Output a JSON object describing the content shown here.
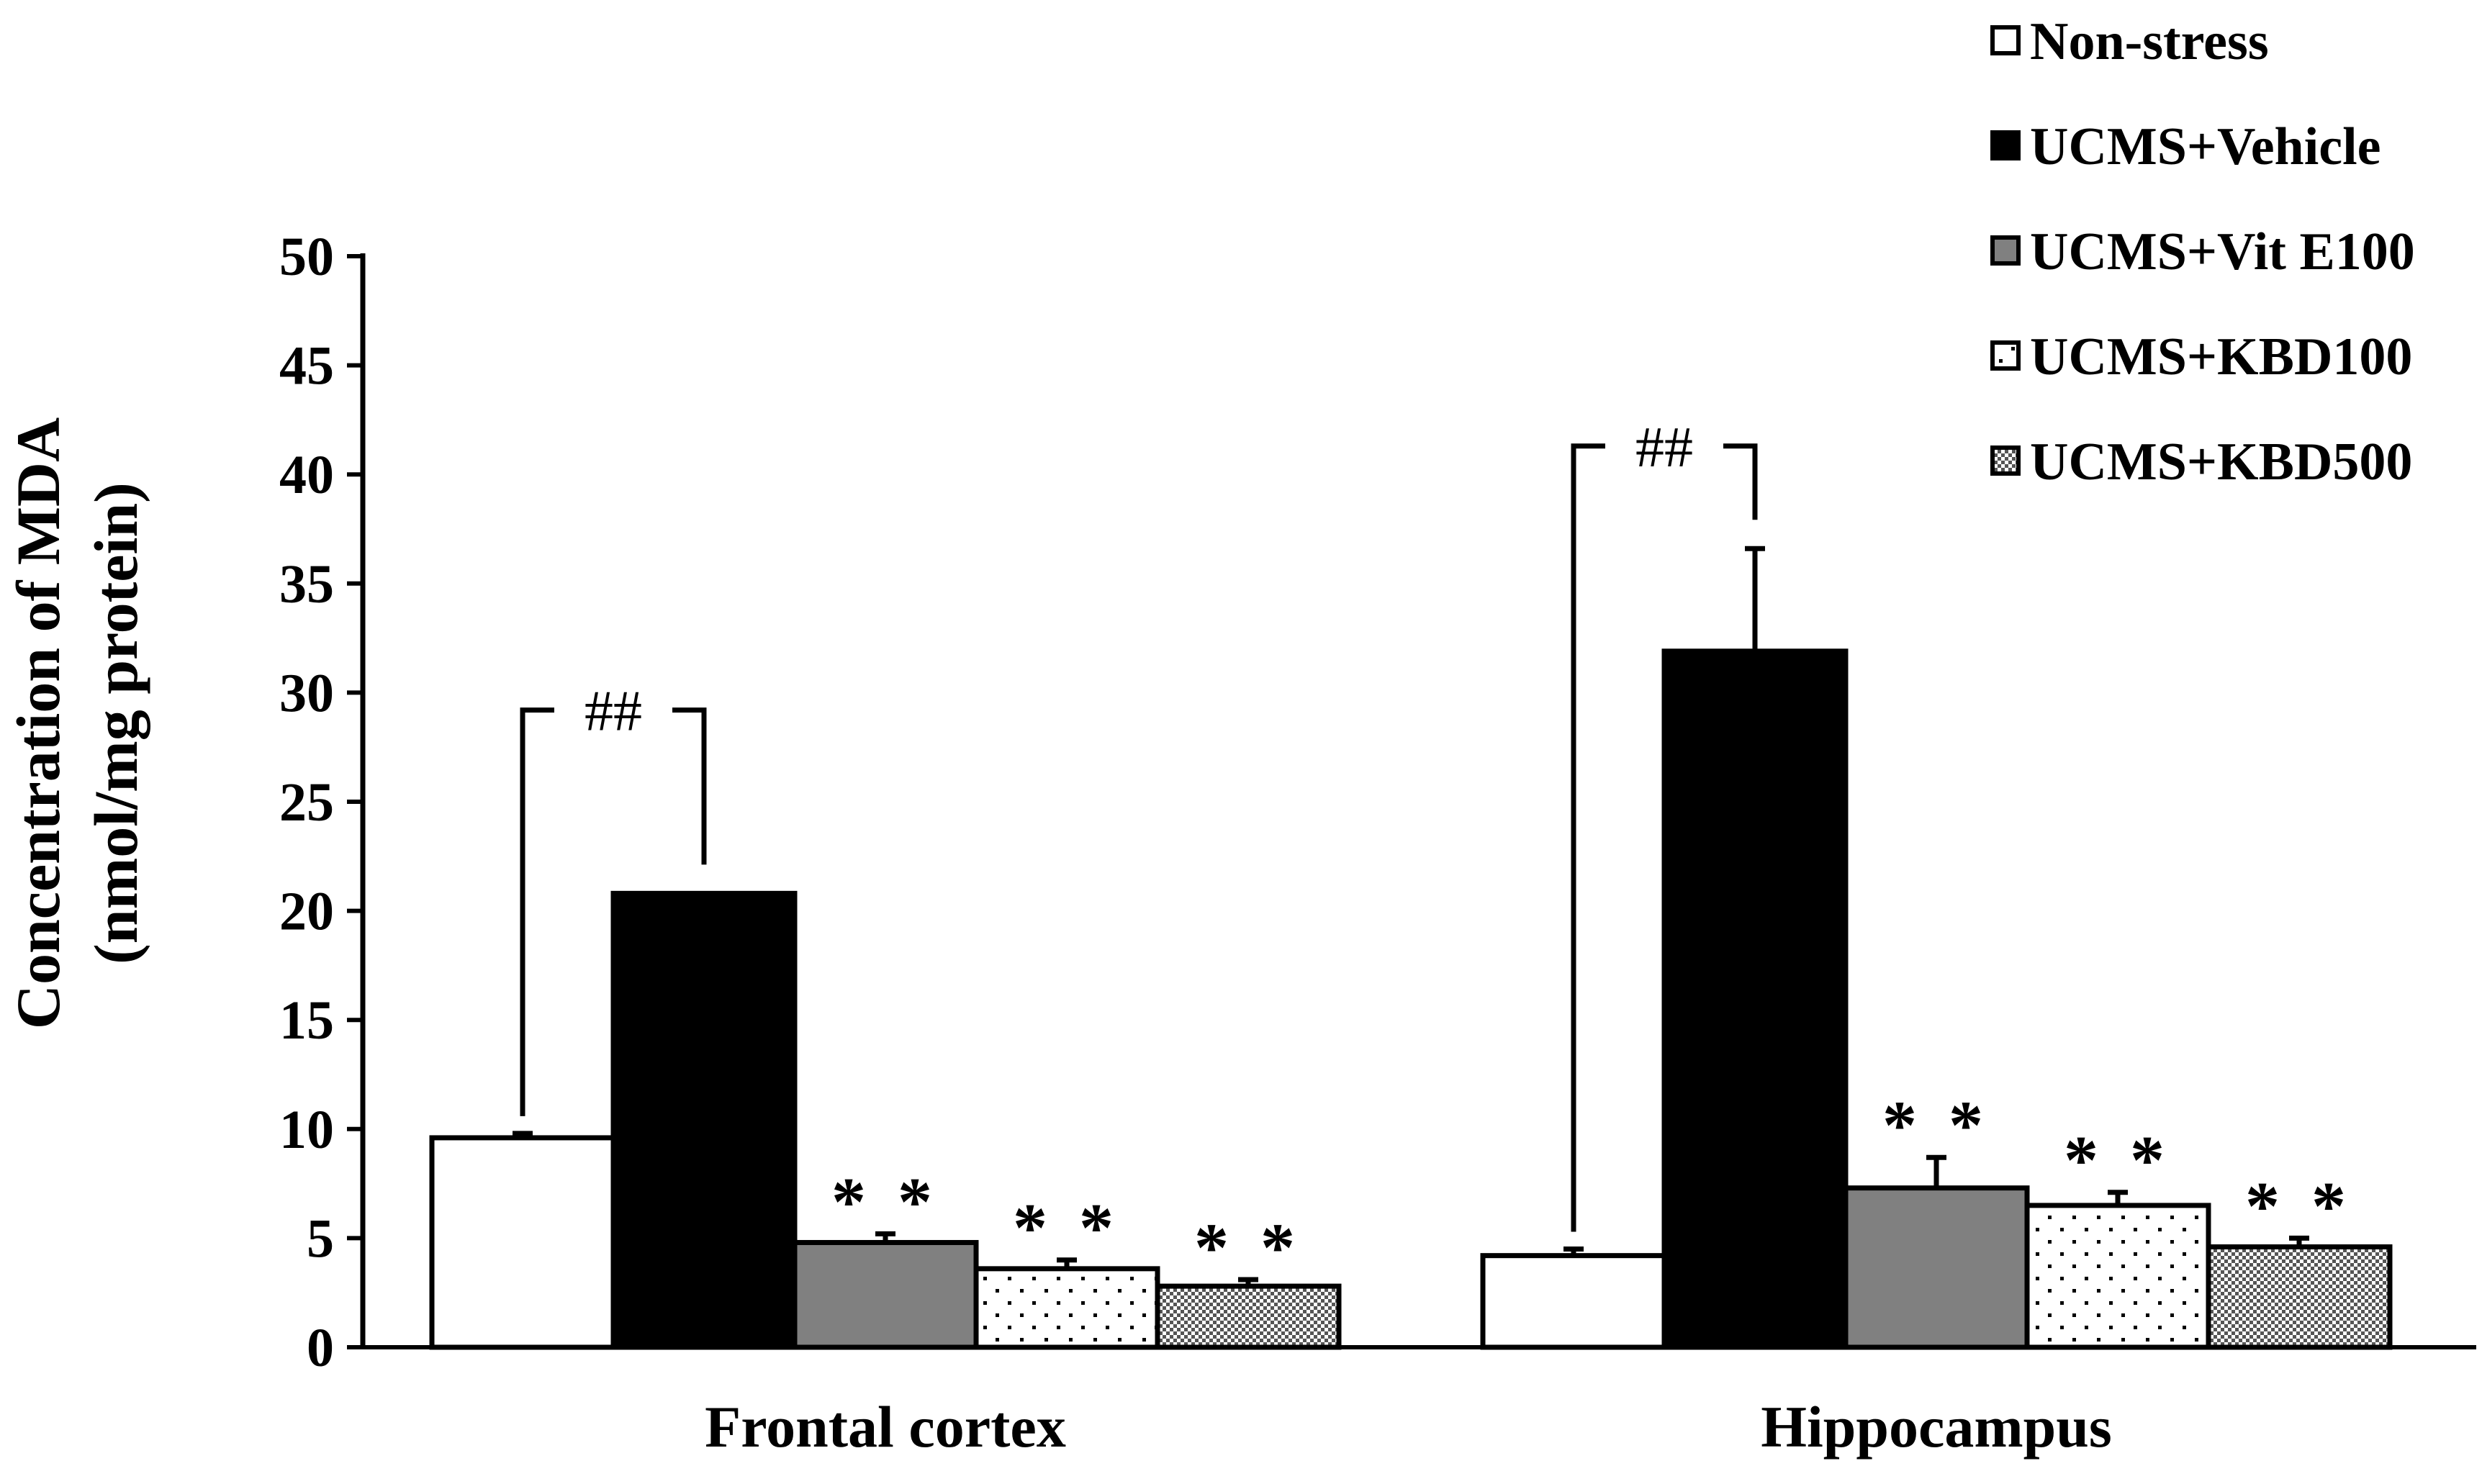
{
  "chart_data": {
    "type": "bar",
    "ylabel_line1": "Concentration of MDA",
    "ylabel_line2": "(nmol/mg protein)",
    "ylim": [
      0,
      50
    ],
    "yticks": [
      "0",
      "5",
      "10",
      "15",
      "20",
      "25",
      "30",
      "35",
      "40",
      "45",
      "50"
    ],
    "categories": [
      "Frontal cortex",
      "Hippocampus"
    ],
    "legend_position": "top-right",
    "series": [
      {
        "name": "Non-stress",
        "values": [
          9.6,
          4.2
        ],
        "errors": [
          0.2,
          0.3
        ],
        "fill": "white",
        "markers": [
          "",
          ""
        ]
      },
      {
        "name": "UCMS+Vehicle",
        "values": [
          20.8,
          31.9
        ],
        "errors": [
          0,
          4.7
        ],
        "fill": "black",
        "markers": [
          "",
          ""
        ]
      },
      {
        "name": "UCMS+Vit E100",
        "values": [
          4.8,
          7.3
        ],
        "errors": [
          0.4,
          1.4
        ],
        "fill": "gray",
        "markers": [
          "**",
          "**"
        ]
      },
      {
        "name": "UCMS+KBD100",
        "values": [
          3.6,
          6.5
        ],
        "errors": [
          0.4,
          0.6
        ],
        "fill": "dots",
        "markers": [
          "**",
          "**"
        ]
      },
      {
        "name": "UCMS+KBD500",
        "values": [
          2.8,
          4.6
        ],
        "errors": [
          0.3,
          0.4
        ],
        "fill": "checker",
        "markers": [
          "**",
          "**"
        ]
      }
    ],
    "comparisons": [
      {
        "group": 0,
        "label": "##",
        "bracket_top": 29.2
      },
      {
        "group": 1,
        "label": "##",
        "bracket_top": 41.3
      }
    ],
    "colors": {
      "gray": "#808080",
      "black": "#000000",
      "white": "#ffffff"
    }
  }
}
